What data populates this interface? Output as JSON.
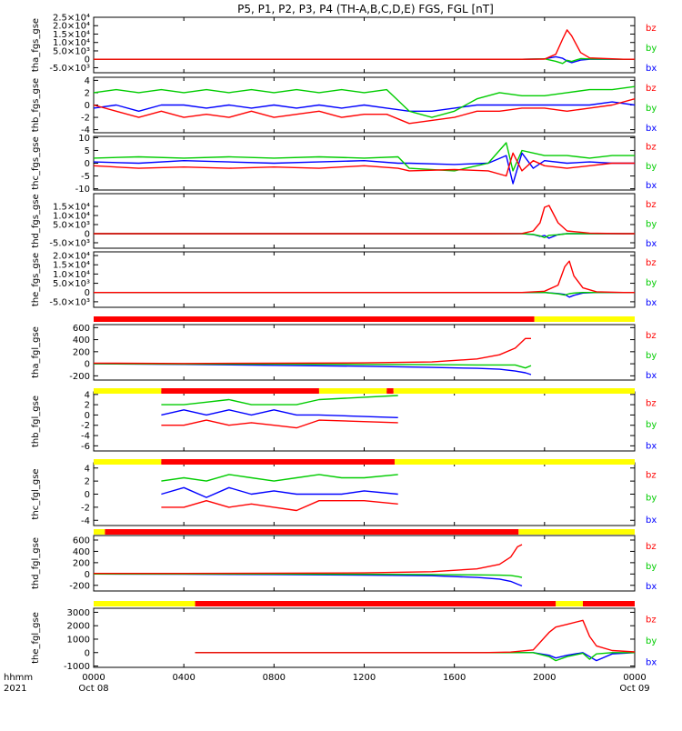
{
  "title": "P5, P1, P2, P3, P4 (TH-A,B,C,D,E) FGS, FGL [nT]",
  "colors": {
    "bz": "#ff0000",
    "by": "#00cc00",
    "bx": "#0000ff",
    "bar_red": "#ff0000",
    "bar_yellow": "#ffff00",
    "axis": "#000000"
  },
  "chart_data": [
    {
      "type": "line",
      "ylabel": "tha_fgs_gse",
      "ylim": [
        -8000,
        25000
      ],
      "yticks": [
        "2.5×10⁴",
        "2.0×10⁴",
        "1.5×10⁴",
        "1.0×10⁴",
        "5.0×10³",
        "0",
        "-5.0×10³"
      ],
      "ytick_values": [
        25000,
        20000,
        15000,
        10000,
        5000,
        0,
        -5000
      ],
      "legend": [
        "bz",
        "by",
        "bx"
      ],
      "x_hours": [
        0,
        17.5,
        19,
        20,
        20.5,
        20.8,
        21.0,
        21.2,
        21.6,
        22,
        23.5,
        24
      ],
      "series": [
        {
          "name": "bz",
          "color": "#ff0000",
          "values": [
            0,
            0,
            0,
            100,
            3000,
            12000,
            17500,
            14000,
            4000,
            800,
            0,
            0
          ]
        },
        {
          "name": "by",
          "color": "#00cc00",
          "values": [
            0,
            0,
            0,
            300,
            -1200,
            -2500,
            -600,
            -1300,
            400,
            200,
            0,
            0
          ]
        },
        {
          "name": "bx",
          "color": "#0000ff",
          "values": [
            0,
            0,
            0,
            200,
            1500,
            600,
            -1000,
            -2000,
            -500,
            0,
            0,
            0
          ]
        }
      ]
    },
    {
      "type": "line",
      "ylabel": "thb_fgs_gse",
      "ylim": [
        -4.5,
        4.5
      ],
      "yticks": [
        "4",
        "2",
        "0",
        "-2",
        "-4"
      ],
      "ytick_values": [
        4,
        2,
        0,
        -2,
        -4
      ],
      "legend": [
        "bz",
        "by",
        "bx"
      ],
      "x_hours": [
        0,
        1,
        2,
        3,
        4,
        5,
        6,
        7,
        8,
        9,
        10,
        11,
        12,
        13,
        14,
        15,
        16,
        17,
        18,
        19,
        20,
        21,
        22,
        23,
        24
      ],
      "series": [
        {
          "name": "bz",
          "color": "#ff0000",
          "values": [
            0,
            -1,
            -2,
            -1,
            -2,
            -1.5,
            -2,
            -1,
            -2,
            -1.5,
            -1,
            -2,
            -1.5,
            -1.5,
            -3,
            -2.5,
            -2,
            -1,
            -1,
            -0.5,
            -0.5,
            -1,
            -0.5,
            0,
            1
          ]
        },
        {
          "name": "by",
          "color": "#00cc00",
          "values": [
            2,
            2.5,
            2,
            2.5,
            2,
            2.5,
            2,
            2.5,
            2,
            2.5,
            2,
            2.5,
            2,
            2.5,
            -1,
            -2,
            -1,
            1,
            2,
            1.5,
            1.5,
            2,
            2.5,
            2.5,
            3
          ]
        },
        {
          "name": "bx",
          "color": "#0000ff",
          "values": [
            -0.5,
            0,
            -1,
            0,
            0,
            -0.5,
            0,
            -0.5,
            0,
            -0.5,
            0,
            -0.5,
            0,
            -0.5,
            -1,
            -1,
            -0.5,
            0,
            0,
            0,
            0,
            0,
            0,
            0.5,
            0
          ]
        }
      ]
    },
    {
      "type": "line",
      "ylabel": "thc_fgs_gse",
      "ylim": [
        -10.5,
        10.5
      ],
      "yticks": [
        "10",
        "5",
        "0",
        "-5",
        "-10"
      ],
      "ytick_values": [
        10,
        5,
        0,
        -5,
        -10
      ],
      "legend": [
        "bz",
        "by",
        "bx"
      ],
      "x_hours": [
        0,
        2,
        4,
        6,
        8,
        10,
        12,
        13.5,
        14,
        16,
        17.5,
        18.3,
        18.6,
        19,
        19.5,
        20,
        21,
        22,
        23,
        24
      ],
      "series": [
        {
          "name": "bz",
          "color": "#ff0000",
          "values": [
            -1,
            -2,
            -1.5,
            -2,
            -1.5,
            -2,
            -1,
            -2,
            -3,
            -2.5,
            -3,
            -5,
            4,
            -3,
            1,
            -1,
            -2,
            -1,
            0,
            0
          ]
        },
        {
          "name": "by",
          "color": "#00cc00",
          "values": [
            2,
            2.5,
            2,
            2.5,
            2,
            2.5,
            2,
            2.5,
            -2,
            -3,
            0,
            8,
            -3,
            5,
            4,
            3,
            3,
            2,
            3,
            3
          ]
        },
        {
          "name": "bx",
          "color": "#0000ff",
          "values": [
            0.5,
            0,
            1,
            0.5,
            0,
            0.5,
            1,
            0,
            0,
            -0.5,
            0,
            3,
            -8,
            4,
            -2,
            1,
            0,
            0.5,
            0,
            0
          ]
        }
      ]
    },
    {
      "type": "line",
      "ylabel": "thd_fgs_gse",
      "ylim": [
        -8000,
        22000
      ],
      "yticks": [
        "1.5×10⁴",
        "1.0×10⁴",
        "5.0×10³",
        "0",
        "-5.0×10³"
      ],
      "ytick_values": [
        15000,
        10000,
        5000,
        0,
        -5000
      ],
      "legend": [
        "bz",
        "by",
        "bx"
      ],
      "x_hours": [
        0,
        17.5,
        19,
        19.5,
        19.8,
        20.0,
        20.2,
        20.6,
        21,
        22,
        23.5,
        24
      ],
      "series": [
        {
          "name": "bz",
          "color": "#ff0000",
          "values": [
            0,
            0,
            100,
            1500,
            6000,
            14500,
            15500,
            6000,
            1500,
            300,
            0,
            0
          ]
        },
        {
          "name": "by",
          "color": "#00cc00",
          "values": [
            0,
            0,
            0,
            -400,
            -1200,
            -2200,
            -900,
            -600,
            0,
            0,
            0,
            0
          ]
        },
        {
          "name": "bx",
          "color": "#0000ff",
          "values": [
            0,
            0,
            0,
            -500,
            -1500,
            -1000,
            -2500,
            -500,
            0,
            0,
            0,
            0
          ]
        }
      ]
    },
    {
      "type": "line",
      "ylabel": "the_fgs_gse",
      "ylim": [
        -8000,
        22000
      ],
      "yticks": [
        "2.0×10⁴",
        "1.5×10⁴",
        "1.0×10⁴",
        "5.0×10³",
        "0",
        "-5.0×10³"
      ],
      "ytick_values": [
        20000,
        15000,
        10000,
        5000,
        0,
        -5000
      ],
      "legend": [
        "bz",
        "by",
        "bx"
      ],
      "x_hours": [
        0,
        17.3,
        19,
        20,
        20.6,
        20.9,
        21.1,
        21.3,
        21.7,
        22.3,
        23.5,
        24
      ],
      "series": [
        {
          "name": "bz",
          "color": "#ff0000",
          "values": [
            0,
            0,
            0,
            700,
            4000,
            14000,
            17000,
            9000,
            2500,
            400,
            0,
            0
          ]
        },
        {
          "name": "by",
          "color": "#00cc00",
          "values": [
            0,
            0,
            0,
            0,
            -700,
            -1400,
            -600,
            -300,
            0,
            0,
            0,
            0
          ]
        },
        {
          "name": "bx",
          "color": "#0000ff",
          "values": [
            0,
            0,
            0,
            0,
            -500,
            -1000,
            -2500,
            -1500,
            -300,
            0,
            0,
            0
          ]
        }
      ]
    },
    {
      "type": "line",
      "ylabel": "tha_fgl_gse",
      "ylim": [
        -270,
        650
      ],
      "yticks": [
        "600",
        "400",
        "200",
        "0",
        "-200"
      ],
      "ytick_values": [
        600,
        400,
        200,
        0,
        -200
      ],
      "legend": [
        "bz",
        "by",
        "bx"
      ],
      "x_hours": [
        0,
        4,
        8,
        12,
        15,
        17,
        18,
        18.7,
        19.15,
        19.4
      ],
      "series": [
        {
          "name": "bz",
          "color": "#ff0000",
          "values": [
            10,
            5,
            10,
            15,
            30,
            80,
            150,
            260,
            420,
            420
          ]
        },
        {
          "name": "by",
          "color": "#00cc00",
          "values": [
            0,
            -5,
            -5,
            -10,
            -15,
            -20,
            -20,
            -20,
            -70,
            -30
          ]
        },
        {
          "name": "bx",
          "color": "#0000ff",
          "values": [
            0,
            -10,
            -25,
            -40,
            -60,
            -75,
            -90,
            -120,
            -150,
            -180
          ]
        }
      ]
    },
    {
      "type": "line",
      "ylabel": "thb_fgl_gse",
      "ylim": [
        -7,
        4.5
      ],
      "yticks": [
        "4",
        "2",
        "0",
        "-2",
        "-4",
        "-6"
      ],
      "ytick_values": [
        4,
        2,
        0,
        -2,
        -4,
        -6
      ],
      "legend": [
        "bz",
        "by",
        "bx"
      ],
      "x_hours": [
        3,
        4,
        5,
        6,
        7,
        8,
        9,
        10,
        13.5
      ],
      "series": [
        {
          "name": "bz",
          "color": "#ff0000",
          "values": [
            -2,
            -2,
            -1,
            -2,
            -1.5,
            -2,
            -2.5,
            -1,
            -1.5
          ]
        },
        {
          "name": "by",
          "color": "#00cc00",
          "values": [
            2,
            2,
            2.5,
            3,
            2,
            2,
            2,
            3,
            3.8
          ]
        },
        {
          "name": "bx",
          "color": "#0000ff",
          "values": [
            0,
            1,
            0,
            1,
            0,
            1,
            0,
            0,
            -0.5
          ]
        }
      ]
    },
    {
      "type": "line",
      "ylabel": "thc_fgl_gse",
      "ylim": [
        -4.8,
        4.8
      ],
      "yticks": [
        "4",
        "2",
        "0",
        "-2",
        "-4"
      ],
      "ytick_values": [
        4,
        2,
        0,
        -2,
        -4
      ],
      "legend": [
        "bz",
        "by",
        "bx"
      ],
      "x_hours": [
        3,
        4,
        5,
        6,
        7,
        8,
        9,
        10,
        11,
        12,
        13.5
      ],
      "series": [
        {
          "name": "bz",
          "color": "#ff0000",
          "values": [
            -2,
            -2,
            -1,
            -2,
            -1.5,
            -2,
            -2.5,
            -1,
            -1,
            -1,
            -1.5
          ]
        },
        {
          "name": "by",
          "color": "#00cc00",
          "values": [
            2,
            2.5,
            2,
            3,
            2.5,
            2,
            2.5,
            3,
            2.5,
            2.5,
            3
          ]
        },
        {
          "name": "bx",
          "color": "#0000ff",
          "values": [
            0,
            1,
            -0.5,
            1,
            0,
            0.5,
            0,
            0,
            0,
            0.5,
            0
          ]
        }
      ]
    },
    {
      "type": "line",
      "ylabel": "thd_fgl_gse",
      "ylim": [
        -300,
        680
      ],
      "yticks": [
        "600",
        "400",
        "200",
        "0",
        "-200"
      ],
      "ytick_values": [
        600,
        400,
        200,
        0,
        -200
      ],
      "legend": [
        "bz",
        "by",
        "bx"
      ],
      "x_hours": [
        0,
        4,
        8,
        12,
        15,
        17,
        18,
        18.5,
        18.8,
        19.0
      ],
      "series": [
        {
          "name": "bz",
          "color": "#ff0000",
          "values": [
            10,
            10,
            15,
            20,
            40,
            90,
            170,
            300,
            480,
            520
          ]
        },
        {
          "name": "by",
          "color": "#00cc00",
          "values": [
            0,
            0,
            0,
            -5,
            -10,
            -15,
            -20,
            -25,
            -45,
            -60
          ]
        },
        {
          "name": "bx",
          "color": "#0000ff",
          "values": [
            0,
            -5,
            -10,
            -20,
            -30,
            -60,
            -90,
            -130,
            -180,
            -210
          ]
        }
      ]
    },
    {
      "type": "line",
      "ylabel": "the_fgl_gse",
      "ylim": [
        -1100,
        3300
      ],
      "yticks": [
        "3000",
        "2000",
        "1000",
        "0",
        "-1000"
      ],
      "ytick_values": [
        3000,
        2000,
        1000,
        0,
        -1000
      ],
      "legend": [
        "bz",
        "by",
        "bx"
      ],
      "x_hours": [
        4.5,
        17.3,
        18.5,
        19.5,
        20.2,
        20.5,
        21.0,
        21.7,
        22.0,
        22.3,
        23.0,
        24
      ],
      "series": [
        {
          "name": "bz",
          "color": "#ff0000",
          "values": [
            0,
            0,
            40,
            200,
            1500,
            1900,
            2100,
            2400,
            1200,
            500,
            150,
            50
          ]
        },
        {
          "name": "by",
          "color": "#00cc00",
          "values": [
            0,
            0,
            0,
            0,
            -300,
            -600,
            -300,
            -50,
            -500,
            -100,
            0,
            0
          ]
        },
        {
          "name": "bx",
          "color": "#0000ff",
          "values": [
            0,
            0,
            0,
            0,
            -200,
            -400,
            -200,
            0,
            -300,
            -600,
            -100,
            0
          ]
        }
      ]
    }
  ],
  "status_bars": [
    {
      "segments": [
        {
          "start": 0,
          "end": 19.55,
          "color": "red"
        },
        {
          "start": 19.55,
          "end": 24,
          "color": "yellow"
        }
      ]
    },
    {
      "segments": [
        {
          "start": 0,
          "end": 3,
          "color": "yellow"
        },
        {
          "start": 3,
          "end": 10,
          "color": "red"
        },
        {
          "start": 10,
          "end": 13,
          "color": "yellow"
        },
        {
          "start": 13,
          "end": 13.3,
          "color": "red"
        },
        {
          "start": 13.3,
          "end": 24,
          "color": "yellow"
        }
      ]
    },
    {
      "segments": [
        {
          "start": 0,
          "end": 3,
          "color": "yellow"
        },
        {
          "start": 3,
          "end": 13.35,
          "color": "red"
        },
        {
          "start": 13.35,
          "end": 24,
          "color": "yellow"
        }
      ]
    },
    {
      "segments": [
        {
          "start": 0,
          "end": 0.5,
          "color": "yellow"
        },
        {
          "start": 0.5,
          "end": 18.85,
          "color": "red"
        },
        {
          "start": 18.85,
          "end": 24,
          "color": "yellow"
        }
      ]
    },
    {
      "segments": [
        {
          "start": 0,
          "end": 4.5,
          "color": "yellow"
        },
        {
          "start": 4.5,
          "end": 20.5,
          "color": "red"
        },
        {
          "start": 20.5,
          "end": 21.7,
          "color": "yellow"
        },
        {
          "start": 21.7,
          "end": 24,
          "color": "red"
        }
      ]
    }
  ],
  "x_axis": {
    "ticks": [
      "0000",
      "0400",
      "0800",
      "1200",
      "1600",
      "2000",
      "0000"
    ],
    "tick_hours": [
      0,
      4,
      8,
      12,
      16,
      20,
      24
    ],
    "date_labels": [
      {
        "hour": 0,
        "text": "Oct 08"
      },
      {
        "hour": 24,
        "text": "Oct 09"
      }
    ],
    "row_labels": [
      "hhmm",
      "2021"
    ]
  }
}
